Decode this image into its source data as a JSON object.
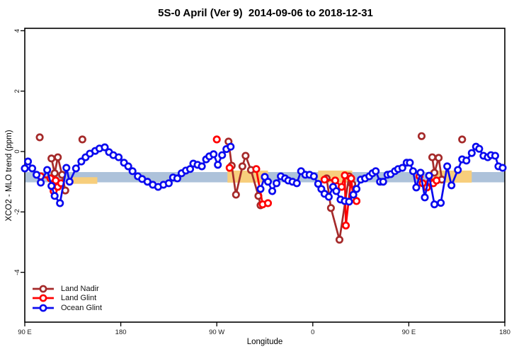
{
  "chart_data": {
    "type": "line",
    "title": "5S-0 April (Ver 9)  2014-09-06 to 2018-12-31",
    "xlabel": "Longitude",
    "ylabel": "XCO2 - MLO trend (ppm)",
    "x_axis": {
      "unit": "degrees eastward from 90 E (wrapped longitude axis)",
      "range": [
        0,
        450
      ],
      "ticks": [
        {
          "pos": 0,
          "label": "90 E"
        },
        {
          "pos": 90,
          "label": "180"
        },
        {
          "pos": 180,
          "label": "90 W"
        },
        {
          "pos": 270,
          "label": "0"
        },
        {
          "pos": 360,
          "label": "90 E"
        },
        {
          "pos": 450,
          "label": "180"
        }
      ]
    },
    "y_axis": {
      "range": [
        -5.65,
        4.08
      ],
      "ticks": [
        {
          "pos": 4,
          "label": "4"
        },
        {
          "pos": 2,
          "label": "2"
        },
        {
          "pos": 0,
          "label": "0"
        },
        {
          "pos": -2,
          "label": "-2"
        },
        {
          "pos": -4,
          "label": "-4"
        }
      ]
    },
    "grid": false,
    "bands": {
      "ocean_band": {
        "color": "#ADC2DA",
        "x": [
          0,
          450
        ],
        "y": [
          -0.68,
          -1.02
        ]
      },
      "land_band_color": "#F7CE7C",
      "land_band_segments": [
        {
          "x": [
            45,
            68
          ],
          "y": [
            -0.85,
            -1.07
          ]
        },
        {
          "x": [
            190,
            228
          ],
          "y": [
            -0.63,
            -1.03
          ]
        },
        {
          "x": [
            275,
            307
          ],
          "y": [
            -0.63,
            -1.03
          ]
        },
        {
          "x": [
            380,
            419
          ],
          "y": [
            -0.63,
            -1.03
          ]
        }
      ]
    },
    "legend": {
      "position": "bottom-left"
    },
    "series": [
      {
        "name": "Land Nadir",
        "color": "#A52A2A",
        "segments": [
          [
            [
              14,
              0.47
            ]
          ],
          [
            [
              25,
              -0.23
            ],
            [
              28,
              -0.72
            ],
            [
              31,
              -0.19
            ],
            [
              35,
              -0.77
            ],
            [
              38,
              -1.29
            ]
          ],
          [
            [
              54,
              0.4
            ]
          ],
          [
            [
              191,
              0.33
            ],
            [
              194,
              -0.47
            ],
            [
              198,
              -1.43
            ],
            [
              204,
              -0.49
            ],
            [
              207,
              -0.14
            ],
            [
              212,
              -0.61
            ],
            [
              219,
              -1.47
            ],
            [
              221,
              -1.78
            ]
          ],
          [
            [
              283,
              -0.89
            ],
            [
              287,
              -1.87
            ],
            [
              295,
              -2.92
            ],
            [
              304,
              -0.82
            ],
            [
              307,
              -1.08
            ]
          ],
          [
            [
              372,
              0.51
            ]
          ],
          [
            [
              382,
              -0.19
            ],
            [
              384,
              -0.7
            ],
            [
              388,
              -0.21
            ],
            [
              391,
              -0.93
            ]
          ],
          [
            [
              410,
              0.4
            ]
          ]
        ]
      },
      {
        "name": "Land Glint",
        "color": "#FF0000",
        "segments": [
          [
            [
              15,
              -0.82
            ],
            [
              24,
              -0.89
            ],
            [
              27,
              -1.31
            ],
            [
              29,
              -0.96
            ],
            [
              31,
              -1.17
            ],
            [
              34,
              -1.05
            ]
          ],
          [
            [
              180,
              0.4
            ]
          ],
          [
            [
              192,
              -0.54
            ]
          ],
          [
            [
              217,
              -0.58
            ],
            [
              223,
              -1.75
            ],
            [
              228,
              -1.71
            ]
          ],
          [
            [
              281,
              -0.93
            ],
            [
              291,
              -0.96
            ],
            [
              297,
              -1.17
            ],
            [
              300,
              -0.79
            ],
            [
              301,
              -2.45
            ],
            [
              306,
              -0.89
            ],
            [
              308,
              -1.54
            ],
            [
              311,
              -1.64
            ]
          ],
          [
            [
              370,
              -0.82
            ],
            [
              373,
              -1.05
            ],
            [
              377,
              -1.19
            ],
            [
              380,
              -1.0
            ],
            [
              383,
              -1.05
            ],
            [
              386,
              -0.96
            ]
          ]
        ]
      },
      {
        "name": "Ocean Glint",
        "color": "#0A0AEF",
        "segments": [
          [
            [
              0,
              -0.56
            ],
            [
              3,
              -0.33
            ],
            [
              7,
              -0.56
            ],
            [
              11,
              -0.77
            ],
            [
              15,
              -1.03
            ],
            [
              21,
              -0.61
            ],
            [
              25,
              -1.14
            ],
            [
              28,
              -1.47
            ],
            [
              33,
              -1.71
            ],
            [
              39,
              -0.54
            ],
            [
              42,
              -1.0
            ],
            [
              48,
              -0.56
            ],
            [
              53,
              -0.33
            ],
            [
              57,
              -0.19
            ],
            [
              61,
              -0.07
            ],
            [
              66,
              0.02
            ],
            [
              70,
              0.1
            ],
            [
              75,
              0.14
            ],
            [
              79,
              -0.02
            ],
            [
              83,
              -0.12
            ],
            [
              88,
              -0.19
            ],
            [
              93,
              -0.37
            ],
            [
              97,
              -0.49
            ],
            [
              101,
              -0.65
            ],
            [
              106,
              -0.82
            ],
            [
              110,
              -0.91
            ],
            [
              115,
              -1.0
            ],
            [
              120,
              -1.1
            ],
            [
              125,
              -1.17
            ],
            [
              130,
              -1.1
            ],
            [
              135,
              -1.05
            ],
            [
              139,
              -0.86
            ],
            [
              143,
              -0.89
            ],
            [
              147,
              -0.72
            ],
            [
              151,
              -0.63
            ],
            [
              155,
              -0.58
            ],
            [
              158,
              -0.4
            ],
            [
              162,
              -0.44
            ],
            [
              166,
              -0.49
            ],
            [
              170,
              -0.26
            ],
            [
              173,
              -0.16
            ],
            [
              177,
              -0.09
            ],
            [
              181,
              -0.44
            ],
            [
              185,
              -0.12
            ],
            [
              189,
              0.08
            ],
            [
              193,
              0.16
            ]
          ],
          [
            [
              221,
              -1.24
            ],
            [
              225,
              -0.84
            ],
            [
              228,
              -1.0
            ],
            [
              232,
              -1.31
            ],
            [
              236,
              -1.05
            ],
            [
              240,
              -0.82
            ],
            [
              244,
              -0.89
            ],
            [
              247,
              -0.96
            ],
            [
              251,
              -1.0
            ],
            [
              255,
              -1.05
            ],
            [
              259,
              -0.65
            ],
            [
              263,
              -0.77
            ],
            [
              267,
              -0.77
            ],
            [
              271,
              -0.82
            ],
            [
              275,
              -1.07
            ],
            [
              278,
              -1.24
            ],
            [
              281,
              -1.4
            ],
            [
              285,
              -1.5
            ],
            [
              289,
              -1.17
            ],
            [
              292,
              -1.31
            ],
            [
              296,
              -1.59
            ],
            [
              300,
              -1.64
            ],
            [
              304,
              -1.66
            ],
            [
              308,
              -1.43
            ],
            [
              311,
              -1.24
            ],
            [
              315,
              -0.93
            ],
            [
              319,
              -0.89
            ],
            [
              323,
              -0.82
            ],
            [
              326,
              -0.72
            ],
            [
              329,
              -0.65
            ],
            [
              333,
              -1.0
            ],
            [
              336,
              -1.0
            ],
            [
              340,
              -0.77
            ],
            [
              343,
              -0.75
            ],
            [
              347,
              -0.65
            ],
            [
              350,
              -0.58
            ],
            [
              354,
              -0.54
            ],
            [
              358,
              -0.37
            ],
            [
              361,
              -0.37
            ],
            [
              364,
              -0.65
            ],
            [
              367,
              -1.19
            ],
            [
              371,
              -0.7
            ],
            [
              375,
              -1.52
            ],
            [
              379,
              -0.8
            ],
            [
              384,
              -1.75
            ],
            [
              390,
              -1.7
            ],
            [
              396,
              -0.49
            ],
            [
              400,
              -1.12
            ],
            [
              406,
              -0.61
            ],
            [
              410,
              -0.26
            ],
            [
              414,
              -0.3
            ],
            [
              419,
              -0.05
            ],
            [
              423,
              0.16
            ],
            [
              426,
              0.09
            ],
            [
              430,
              -0.14
            ],
            [
              434,
              -0.19
            ],
            [
              437,
              -0.12
            ],
            [
              441,
              -0.14
            ],
            [
              444,
              -0.49
            ],
            [
              448,
              -0.54
            ]
          ]
        ]
      }
    ]
  }
}
